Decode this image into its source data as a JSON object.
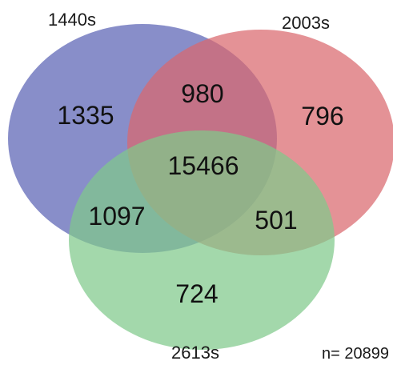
{
  "sets": [
    {
      "id": "a",
      "label": "1440s",
      "color": "#5a62b4"
    },
    {
      "id": "b",
      "label": "2003s",
      "color": "#d9686e"
    },
    {
      "id": "c",
      "label": "2613s",
      "color": "#7fc98a"
    }
  ],
  "regions": {
    "a_only": "1335",
    "b_only": "796",
    "c_only": "724",
    "ab": "980",
    "ac": "1097",
    "bc": "501",
    "abc": "15466"
  },
  "total": "n= 20899"
}
